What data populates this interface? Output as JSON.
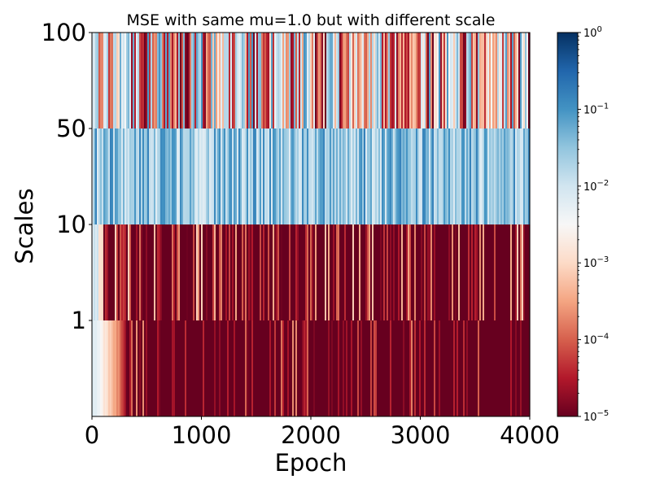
{
  "chart_data": {
    "type": "heatmap",
    "title": "MSE  with same mu=1.0 but with different scale",
    "xlabel": "Epoch",
    "ylabel": "Scales",
    "xlim": [
      0,
      4000
    ],
    "x_ticks": [
      0,
      1000,
      2000,
      3000,
      4000
    ],
    "x_tick_labels": [
      "0",
      "1000",
      "2000",
      "3000",
      "4000"
    ],
    "y_categories": [
      "1",
      "10",
      "50",
      "100"
    ],
    "colormap": "RdBu (diverging, red = low, blue = high)",
    "color_scale": "log",
    "clim": [
      1e-05,
      1
    ],
    "colorbar_ticks": [
      {
        "base": "10",
        "exp": "0"
      },
      {
        "base": "10",
        "exp": "−1"
      },
      {
        "base": "10",
        "exp": "−2"
      },
      {
        "base": "10",
        "exp": "−3"
      },
      {
        "base": "10",
        "exp": "−4"
      },
      {
        "base": "10",
        "exp": "−5"
      }
    ],
    "rows": [
      {
        "scale": "100",
        "description": "alternating epochs of high MSE (~1e-2 to 1e-1) and low MSE (~1e-5 to 1e-3), evenly mixed across all epochs",
        "typical_log10_range": [
          -5,
          -0.3
        ]
      },
      {
        "scale": "50",
        "description": "uniformly high MSE across all epochs",
        "typical_log10_range": [
          -2.2,
          -0.8
        ]
      },
      {
        "scale": "10",
        "description": "starts near 1e-2 for the first ~100 epochs, then mostly ~1e-5 with scattered bursts up to ~1e-3",
        "typical_log10_range": [
          -5,
          -2.2
        ]
      },
      {
        "scale": "1",
        "description": "starts ~1e-2 and decays to ~1e-5 by epoch ~300, then mostly ~1e-5 with occasional spikes up to ~1e-4",
        "typical_log10_range": [
          -5,
          -3.5
        ]
      }
    ]
  }
}
